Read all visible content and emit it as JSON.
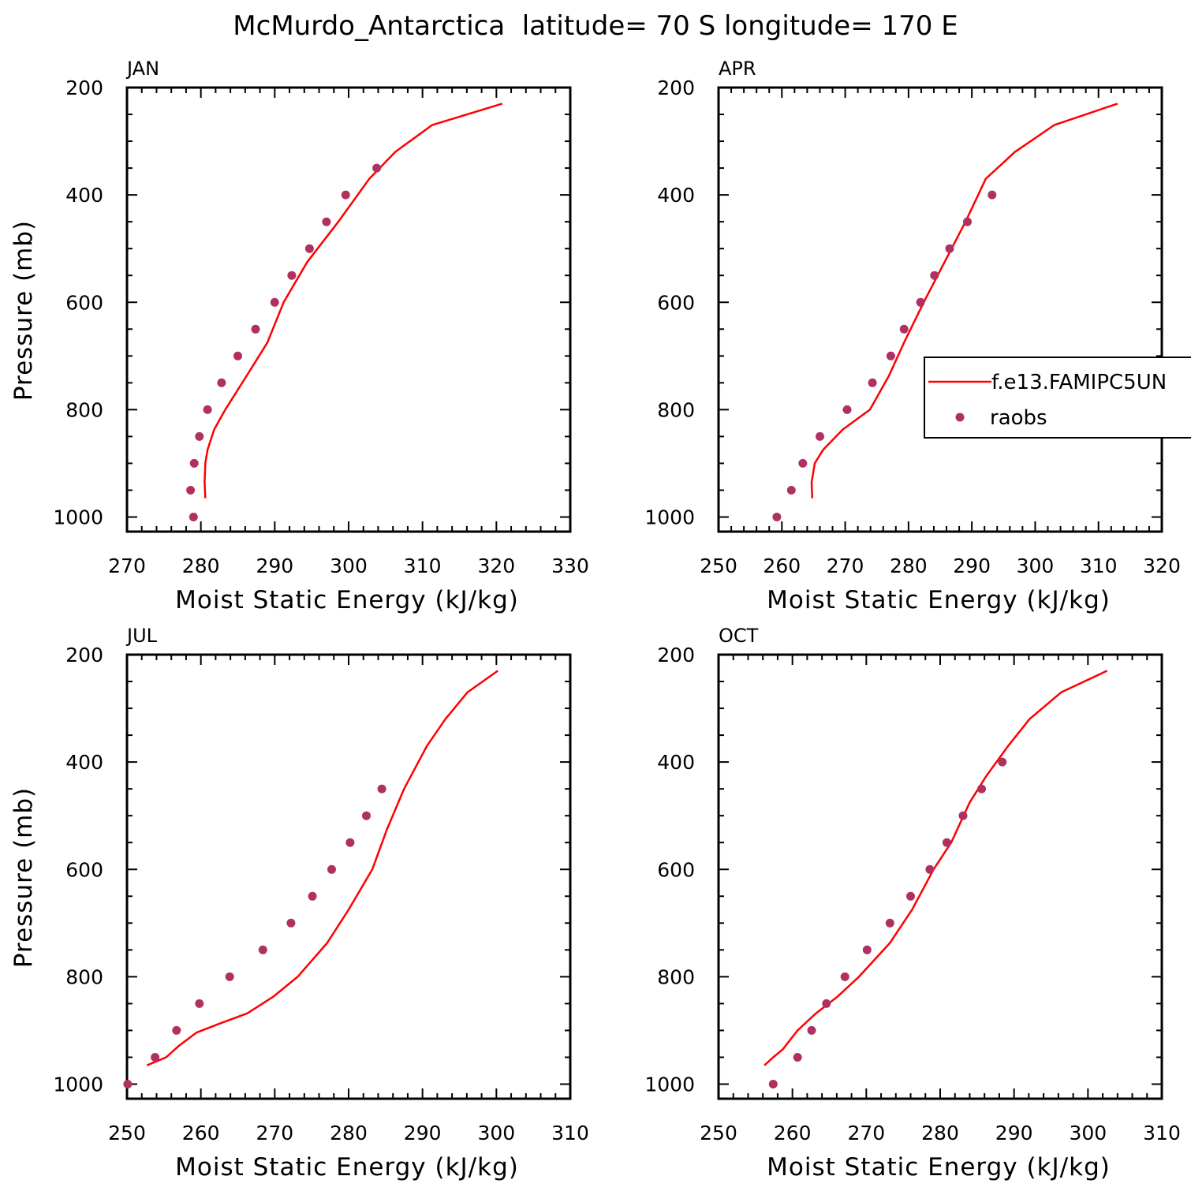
{
  "figure": {
    "title": "McMurdo_Antarctica  latitude= 70 S longitude= 170 E"
  },
  "colors": {
    "model_line": "#ff0000",
    "obs_marker": "#b03060",
    "axes": "#000000"
  },
  "legend": {
    "panel": "APR",
    "placement": "right-middle, clipped at figure edge",
    "entries": [
      {
        "label": "f.e13.FAMIPC5UN",
        "kind": "line"
      },
      {
        "label": "raobs",
        "kind": "marker"
      }
    ]
  },
  "chart_data": [
    {
      "type": "line",
      "panel_label": "JAN",
      "xlabel": "Moist Static Energy (kJ/kg)",
      "ylabel": "Pressure (mb)",
      "xlim": [
        270,
        330
      ],
      "ylim": [
        1000,
        200
      ],
      "xticks": [
        270,
        280,
        290,
        300,
        310,
        320,
        330
      ],
      "yticks": [
        200,
        400,
        600,
        800,
        1000
      ],
      "series": [
        {
          "name": "f.e13.FAMIPC5UN",
          "kind": "line",
          "points": [
            [
              320.8,
              230
            ],
            [
              311.3,
              270
            ],
            [
              306.3,
              320
            ],
            [
              302.8,
              370
            ],
            [
              298.6,
              450
            ],
            [
              294.4,
              525
            ],
            [
              291.2,
              600
            ],
            [
              289.0,
              675
            ],
            [
              286.2,
              737
            ],
            [
              283.3,
              800
            ],
            [
              281.8,
              837
            ],
            [
              280.9,
              875
            ],
            [
              280.6,
              900
            ],
            [
              280.5,
              935
            ],
            [
              280.6,
              965
            ]
          ]
        },
        {
          "name": "raobs",
          "kind": "marker",
          "points": [
            [
              303.8,
              350
            ],
            [
              299.6,
              400
            ],
            [
              297.0,
              450
            ],
            [
              294.7,
              500
            ],
            [
              292.3,
              550
            ],
            [
              290.0,
              600
            ],
            [
              287.4,
              650
            ],
            [
              285.0,
              700
            ],
            [
              282.8,
              750
            ],
            [
              280.9,
              800
            ],
            [
              279.8,
              850
            ],
            [
              279.1,
              900
            ],
            [
              278.6,
              950
            ],
            [
              279.0,
              1000
            ]
          ]
        }
      ]
    },
    {
      "type": "line",
      "panel_label": "APR",
      "xlabel": "Moist Static Energy (kJ/kg)",
      "ylabel": "",
      "xlim": [
        250,
        320
      ],
      "ylim": [
        1000,
        200
      ],
      "xticks": [
        250,
        260,
        270,
        280,
        290,
        300,
        310,
        320
      ],
      "yticks": [
        200,
        400,
        600,
        800,
        1000
      ],
      "series": [
        {
          "name": "f.e13.FAMIPC5UN",
          "kind": "line",
          "points": [
            [
              313.0,
              230
            ],
            [
              303.0,
              270
            ],
            [
              296.8,
              320
            ],
            [
              292.2,
              370
            ],
            [
              289.0,
              450
            ],
            [
              285.7,
              525
            ],
            [
              282.4,
              600
            ],
            [
              279.3,
              675
            ],
            [
              276.9,
              737
            ],
            [
              273.9,
              800
            ],
            [
              269.6,
              837
            ],
            [
              266.5,
              875
            ],
            [
              265.2,
              900
            ],
            [
              264.7,
              935
            ],
            [
              264.8,
              965
            ]
          ]
        },
        {
          "name": "raobs",
          "kind": "marker",
          "points": [
            [
              293.2,
              400
            ],
            [
              289.3,
              450
            ],
            [
              286.5,
              500
            ],
            [
              284.1,
              550
            ],
            [
              281.9,
              600
            ],
            [
              279.3,
              650
            ],
            [
              277.2,
              700
            ],
            [
              274.3,
              750
            ],
            [
              270.3,
              800
            ],
            [
              266.0,
              850
            ],
            [
              263.3,
              900
            ],
            [
              261.5,
              950
            ],
            [
              259.2,
              1000
            ]
          ]
        }
      ]
    },
    {
      "type": "line",
      "panel_label": "JUL",
      "xlabel": "Moist Static Energy (kJ/kg)",
      "ylabel": "Pressure (mb)",
      "xlim": [
        250,
        310
      ],
      "ylim": [
        1000,
        200
      ],
      "xticks": [
        250,
        260,
        270,
        280,
        290,
        300,
        310
      ],
      "yticks": [
        200,
        400,
        600,
        800,
        1000
      ],
      "series": [
        {
          "name": "f.e13.FAMIPC5UN",
          "kind": "line",
          "points": [
            [
              300.2,
              230
            ],
            [
              296.1,
              270
            ],
            [
              293.1,
              320
            ],
            [
              290.6,
              370
            ],
            [
              287.5,
              450
            ],
            [
              285.2,
              525
            ],
            [
              283.2,
              600
            ],
            [
              280.0,
              675
            ],
            [
              277.1,
              737
            ],
            [
              273.1,
              800
            ],
            [
              269.8,
              837
            ],
            [
              266.3,
              868
            ],
            [
              262.6,
              887
            ],
            [
              259.4,
              904
            ],
            [
              256.9,
              930
            ],
            [
              255.3,
              950
            ],
            [
              252.7,
              965
            ]
          ]
        },
        {
          "name": "raobs",
          "kind": "marker",
          "points": [
            [
              284.5,
              450
            ],
            [
              282.4,
              500
            ],
            [
              280.2,
              550
            ],
            [
              277.7,
              600
            ],
            [
              275.1,
              650
            ],
            [
              272.2,
              700
            ],
            [
              268.4,
              750
            ],
            [
              263.9,
              800
            ],
            [
              259.8,
              850
            ],
            [
              256.7,
              900
            ],
            [
              253.8,
              950
            ],
            [
              250.1,
              1000
            ]
          ]
        }
      ]
    },
    {
      "type": "line",
      "panel_label": "OCT",
      "xlabel": "Moist Static Energy (kJ/kg)",
      "ylabel": "",
      "xlim": [
        250,
        310
      ],
      "ylim": [
        1000,
        200
      ],
      "xticks": [
        250,
        260,
        270,
        280,
        290,
        300,
        310
      ],
      "yticks": [
        200,
        400,
        600,
        800,
        1000
      ],
      "series": [
        {
          "name": "f.e13.FAMIPC5UN",
          "kind": "line",
          "points": [
            [
              302.6,
              230
            ],
            [
              296.4,
              270
            ],
            [
              292.1,
              320
            ],
            [
              289.2,
              370
            ],
            [
              286.3,
              425
            ],
            [
              284.0,
              475
            ],
            [
              281.5,
              550
            ],
            [
              279.1,
              600
            ],
            [
              276.2,
              675
            ],
            [
              273.2,
              737
            ],
            [
              269.0,
              800
            ],
            [
              266.1,
              837
            ],
            [
              263.2,
              868
            ],
            [
              260.7,
              900
            ],
            [
              258.7,
              935
            ],
            [
              257.4,
              950
            ],
            [
              256.2,
              965
            ]
          ]
        },
        {
          "name": "raobs",
          "kind": "marker",
          "points": [
            [
              288.4,
              400
            ],
            [
              285.6,
              450
            ],
            [
              283.1,
              500
            ],
            [
              280.9,
              550
            ],
            [
              278.6,
              600
            ],
            [
              276.0,
              650
            ],
            [
              273.2,
              700
            ],
            [
              270.1,
              750
            ],
            [
              267.1,
              800
            ],
            [
              264.6,
              850
            ],
            [
              262.6,
              900
            ],
            [
              260.7,
              950
            ],
            [
              257.4,
              1000
            ]
          ]
        }
      ]
    }
  ]
}
